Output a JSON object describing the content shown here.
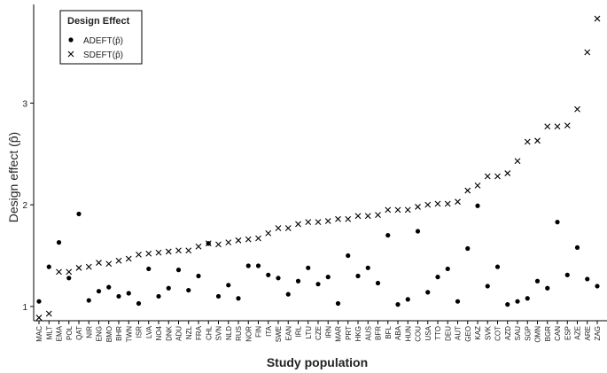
{
  "chart_data": {
    "type": "scatter",
    "x_label": "Study population",
    "y_label": "Design effect (p̂)",
    "legend_title": "Design Effect",
    "legend": "top-left",
    "grid": false,
    "categories": [
      "MAC",
      "MLT",
      "EMA",
      "POL",
      "QAT",
      "NIR",
      "ENG",
      "BMO",
      "BHR",
      "TWN",
      "ISR",
      "LVA",
      "NO4",
      "DNK",
      "ADU",
      "NZL",
      "FRA",
      "CHL",
      "SVN",
      "NLD",
      "RUS",
      "NOR",
      "FIN",
      "ITA",
      "SWE",
      "EAN",
      "IRL",
      "LTU",
      "CZE",
      "IRN",
      "MAR",
      "PRT",
      "HKG",
      "AUS",
      "BFR",
      "BFL",
      "ABA",
      "HUN",
      "COU",
      "USA",
      "TTO",
      "DEU",
      "AUT",
      "GEO",
      "KAZ",
      "SVK",
      "COT",
      "AZD",
      "SAU",
      "SGP",
      "OMN",
      "BGR",
      "CAN",
      "ESP",
      "AZE",
      "ARE",
      "ZAG"
    ],
    "ylim": [
      0.86,
      3.97
    ],
    "yticks": [
      1,
      2,
      3
    ],
    "series": [
      {
        "name": "ADEFT(p̂)",
        "color": "#000000",
        "marker": "dot",
        "values": [
          1.05,
          1.39,
          1.63,
          1.28,
          1.91,
          1.06,
          1.15,
          1.19,
          1.1,
          1.13,
          1.03,
          1.37,
          1.1,
          1.18,
          1.36,
          1.16,
          1.3,
          1.62,
          1.1,
          1.21,
          1.08,
          1.4,
          1.4,
          1.31,
          1.28,
          1.12,
          1.25,
          1.38,
          1.22,
          1.29,
          1.03,
          1.5,
          1.3,
          1.38,
          1.23,
          1.7,
          1.02,
          1.07,
          1.74,
          1.14,
          1.29,
          1.37,
          1.05,
          1.57,
          1.99,
          1.2,
          1.39,
          1.02,
          1.05,
          1.08,
          1.25,
          1.18,
          1.83,
          1.31,
          1.58,
          1.27,
          1.2
        ]
      },
      {
        "name": "SDEFT(p̂)",
        "color": "#000000",
        "marker": "cross",
        "values": [
          0.89,
          0.93,
          1.34,
          1.34,
          1.38,
          1.39,
          1.43,
          1.42,
          1.45,
          1.47,
          1.51,
          1.52,
          1.53,
          1.54,
          1.55,
          1.55,
          1.59,
          1.62,
          1.61,
          1.63,
          1.65,
          1.66,
          1.67,
          1.72,
          1.77,
          1.77,
          1.81,
          1.83,
          1.83,
          1.84,
          1.86,
          1.86,
          1.89,
          1.89,
          1.9,
          1.95,
          1.95,
          1.95,
          1.98,
          2.0,
          2.01,
          2.01,
          2.03,
          2.14,
          2.19,
          2.28,
          2.28,
          2.31,
          2.43,
          2.62,
          2.63,
          2.77,
          2.77,
          2.78,
          2.94,
          3.5,
          3.83
        ]
      }
    ]
  }
}
